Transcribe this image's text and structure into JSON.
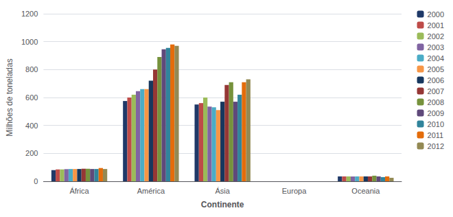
{
  "chart_data": {
    "type": "bar",
    "xlabel": "Continente",
    "ylabel": "Milhões de toneladas",
    "categories": [
      "África",
      "América",
      "Ásia",
      "Europa",
      "Oceania"
    ],
    "series": [
      {
        "name": "2000",
        "color": "#1F3968",
        "values": [
          80,
          575,
          550,
          0,
          35
        ]
      },
      {
        "name": "2001",
        "color": "#BE4B48",
        "values": [
          85,
          600,
          560,
          0,
          35
        ]
      },
      {
        "name": "2002",
        "color": "#9BBB59",
        "values": [
          85,
          620,
          600,
          0,
          35
        ]
      },
      {
        "name": "2003",
        "color": "#8064A2",
        "values": [
          87,
          645,
          535,
          0,
          35
        ]
      },
      {
        "name": "2004",
        "color": "#4BACC6",
        "values": [
          88,
          660,
          530,
          0,
          35
        ]
      },
      {
        "name": "2005",
        "color": "#F79646",
        "values": [
          88,
          660,
          510,
          0,
          35
        ]
      },
      {
        "name": "2006",
        "color": "#17375E",
        "values": [
          88,
          720,
          570,
          0,
          35
        ]
      },
      {
        "name": "2007",
        "color": "#953735",
        "values": [
          90,
          800,
          690,
          0,
          35
        ]
      },
      {
        "name": "2008",
        "color": "#76923C",
        "values": [
          90,
          890,
          710,
          0,
          40
        ]
      },
      {
        "name": "2009",
        "color": "#5F497A",
        "values": [
          88,
          945,
          570,
          0,
          35
        ]
      },
      {
        "name": "2010",
        "color": "#31849B",
        "values": [
          88,
          955,
          620,
          0,
          30
        ]
      },
      {
        "name": "2011",
        "color": "#E46C0A",
        "values": [
          95,
          980,
          710,
          0,
          35
        ]
      },
      {
        "name": "2012",
        "color": "#938953",
        "values": [
          88,
          970,
          730,
          0,
          25
        ]
      }
    ],
    "ylim": [
      0,
      1200
    ],
    "yticks": [
      0,
      200,
      400,
      600,
      800,
      1000,
      1200
    ],
    "grid": true,
    "legend": "right"
  }
}
